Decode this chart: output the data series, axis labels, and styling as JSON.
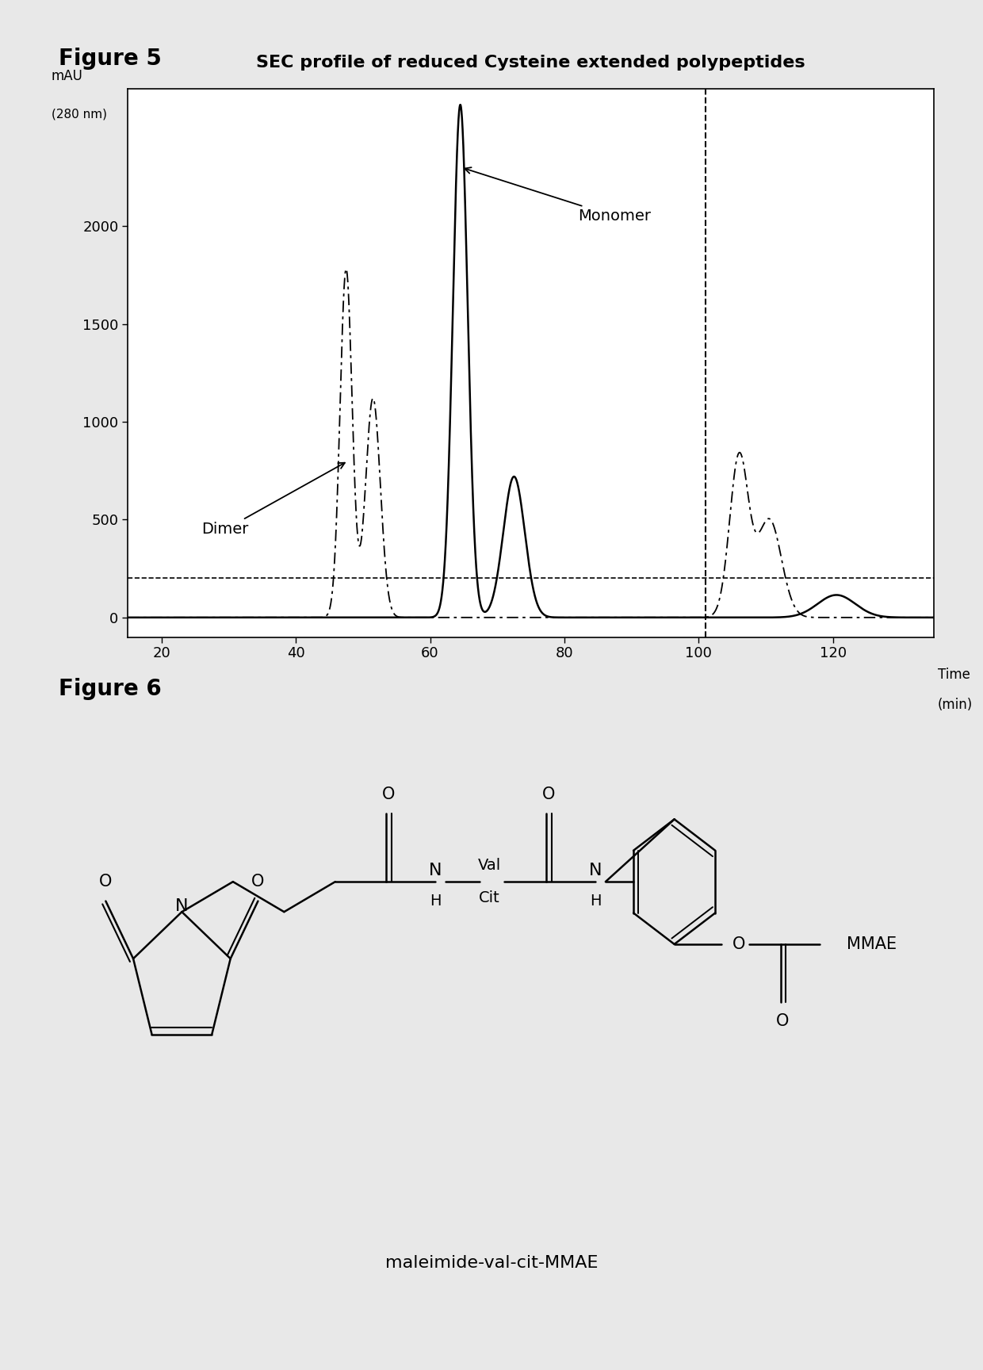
{
  "fig5_title": "SEC profile of reduced Cysteine extended polypeptides",
  "fig5_label": "Figure 5",
  "fig6_label": "Figure 6",
  "yticks": [
    0,
    500,
    1000,
    1500,
    2000
  ],
  "xticks": [
    20,
    40,
    60,
    80,
    100,
    120
  ],
  "xlim": [
    15,
    135
  ],
  "ylim": [
    -100,
    2700
  ],
  "monomer_annotation": "Monomer",
  "dimer_annotation": "Dimer",
  "dashed_vline_x": 101,
  "horizontal_dashed_y": 200,
  "background_color": "#e8e8e8",
  "plot_bg": "#ffffff",
  "chem_label": "maleimide-val-cit-MMAE"
}
